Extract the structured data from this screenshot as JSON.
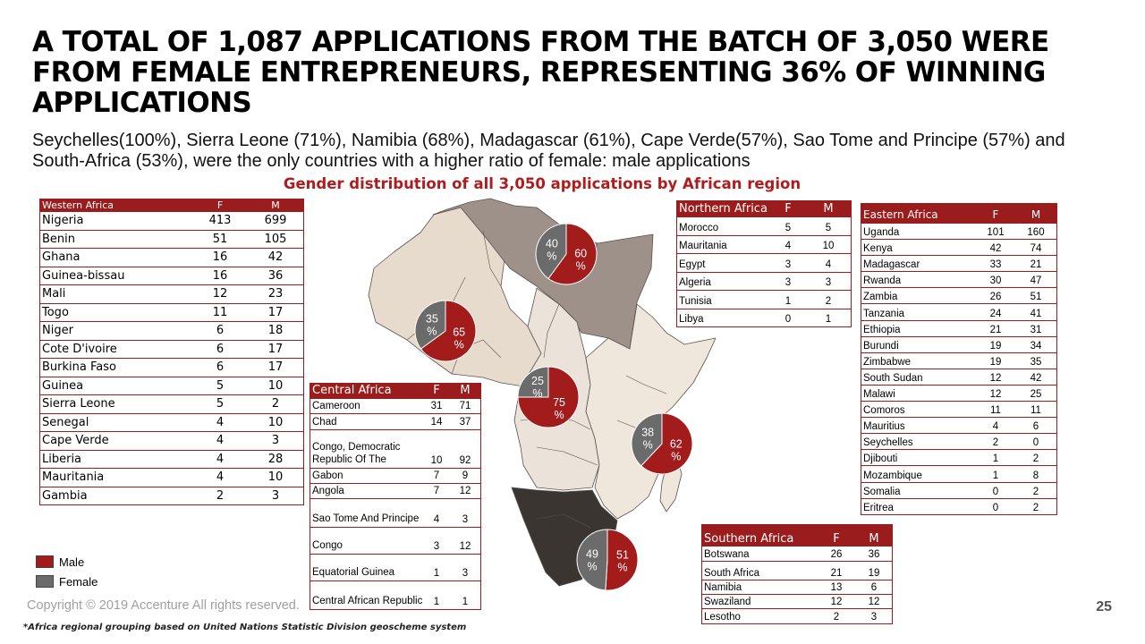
{
  "headline": "A TOTAL OF 1,087 APPLICATIONS FROM THE BATCH OF 3,050 WERE FROM FEMALE ENTREPRENEURS, REPRESENTING 36% OF WINNING APPLICATIONS",
  "subtext": "Seychelles(100%), Sierra Leone (71%), Namibia (68%), Madagascar (61%), Cape Verde(57%), Sao Tome and Principe (57%) and South-Africa (53%), were the only countries with a higher ratio of female: male applications",
  "footer": {
    "copyright": "Copyright © 2019 Accenture  All rights reserved.",
    "footnote": "*Africa regional grouping based on United Nations Statistic Division geoscheme system",
    "page_number": "25"
  },
  "legend": [
    {
      "label": "Male",
      "color": "#a31c1c"
    },
    {
      "label": "Female",
      "color": "#6b6b6b"
    }
  ],
  "colors": {
    "male": "#a31c1c",
    "female": "#6b6b6b",
    "table_header": "#9b1c1c",
    "northern_region": "#9d9189",
    "central_region": "#ebe3d9",
    "western_region": "#e6dbcd",
    "eastern_region": "#efe6dc",
    "southern_region": "#3b3532"
  },
  "chart_data": {
    "type": "pie",
    "title": "Gender distribution of all 3,050 applications by African region",
    "pies": [
      {
        "region": "Northern Africa",
        "female_pct": 40,
        "male_pct": 60,
        "female_label": "40\n%",
        "male_label": "60\n%"
      },
      {
        "region": "Western Africa",
        "female_pct": 35,
        "male_pct": 65,
        "female_label": "35\n%",
        "male_label": "65\n%"
      },
      {
        "region": "Central Africa",
        "female_pct": 25,
        "male_pct": 75,
        "female_label": "25\n%",
        "male_label": "75\n%"
      },
      {
        "region": "Eastern Africa",
        "female_pct": 38,
        "male_pct": 62,
        "female_label": "38\n%",
        "male_label": "62\n%"
      },
      {
        "region": "Southern Africa",
        "female_pct": 49,
        "male_pct": 51,
        "female_label": "49\n%",
        "male_label": "51\n%"
      }
    ],
    "tables": {
      "western": {
        "header": [
          "Western Africa",
          "F",
          "M"
        ],
        "rows": [
          [
            "Nigeria",
            "413",
            "699"
          ],
          [
            "Benin",
            "51",
            "105"
          ],
          [
            "Ghana",
            "16",
            "42"
          ],
          [
            "Guinea-bissau",
            "16",
            "36"
          ],
          [
            "Mali",
            "12",
            "23"
          ],
          [
            "Togo",
            "11",
            "17"
          ],
          [
            "Niger",
            "6",
            "18"
          ],
          [
            "Cote D'ivoire",
            "6",
            "17"
          ],
          [
            "Burkina Faso",
            "6",
            "17"
          ],
          [
            "Guinea",
            "5",
            "10"
          ],
          [
            "Sierra Leone",
            "5",
            "2"
          ],
          [
            "Senegal",
            "4",
            "10"
          ],
          [
            "Cape Verde",
            "4",
            "3"
          ],
          [
            "Liberia",
            "4",
            "28"
          ],
          [
            "Mauritania",
            "4",
            "10"
          ],
          [
            "Gambia",
            "2",
            "3"
          ]
        ]
      },
      "central": {
        "header": [
          "Central Africa",
          "F",
          "M"
        ],
        "rows": [
          [
            "Cameroon",
            "31",
            "71"
          ],
          [
            "Chad",
            "14",
            "37"
          ],
          [
            "Congo, Democratic Republic Of The",
            "10",
            "92"
          ],
          [
            "Gabon",
            "7",
            "9"
          ],
          [
            "Angola",
            "7",
            "12"
          ],
          [
            "Sao Tome And Principe",
            "4",
            "3"
          ],
          [
            "Congo",
            "3",
            "12"
          ],
          [
            "Equatorial Guinea",
            "1",
            "3"
          ],
          [
            "Central African Republic",
            "1",
            "1"
          ]
        ]
      },
      "northern": {
        "header": [
          "Northern Africa",
          "F",
          "M"
        ],
        "rows": [
          [
            "Morocco",
            "5",
            "5"
          ],
          [
            "Mauritania",
            "4",
            "10"
          ],
          [
            "Egypt",
            "3",
            "4"
          ],
          [
            "Algeria",
            "3",
            "3"
          ],
          [
            "Tunisia",
            "1",
            "2"
          ],
          [
            "Libya",
            "0",
            "1"
          ]
        ]
      },
      "eastern": {
        "header": [
          "Eastern Africa",
          "F",
          "M"
        ],
        "rows": [
          [
            "Uganda",
            "101",
            "160"
          ],
          [
            "Kenya",
            "42",
            "74"
          ],
          [
            "Madagascar",
            "33",
            "21"
          ],
          [
            "Rwanda",
            "30",
            "47"
          ],
          [
            "Zambia",
            "26",
            "51"
          ],
          [
            "Tanzania",
            "24",
            "41"
          ],
          [
            "Ethiopia",
            "21",
            "31"
          ],
          [
            "Burundi",
            "19",
            "34"
          ],
          [
            "Zimbabwe",
            "19",
            "35"
          ],
          [
            "South Sudan",
            "12",
            "42"
          ],
          [
            "Malawi",
            "12",
            "25"
          ],
          [
            "Comoros",
            "11",
            "11"
          ],
          [
            "Mauritius",
            "4",
            "6"
          ],
          [
            "Seychelles",
            "2",
            "0"
          ],
          [
            "Djibouti",
            "1",
            "2"
          ],
          [
            "Mozambique",
            "1",
            "8"
          ],
          [
            "Somalia",
            "0",
            "2"
          ],
          [
            "Eritrea",
            "0",
            "2"
          ]
        ]
      },
      "southern": {
        "header": [
          "Southern Africa",
          "F",
          "M"
        ],
        "rows": [
          [
            "Botswana",
            "26",
            "36"
          ],
          [
            "South Africa",
            "21",
            "19"
          ],
          [
            "Namibia",
            "13",
            "6"
          ],
          [
            "Swaziland",
            "12",
            "12"
          ],
          [
            "Lesotho",
            "2",
            "3"
          ]
        ]
      }
    }
  }
}
